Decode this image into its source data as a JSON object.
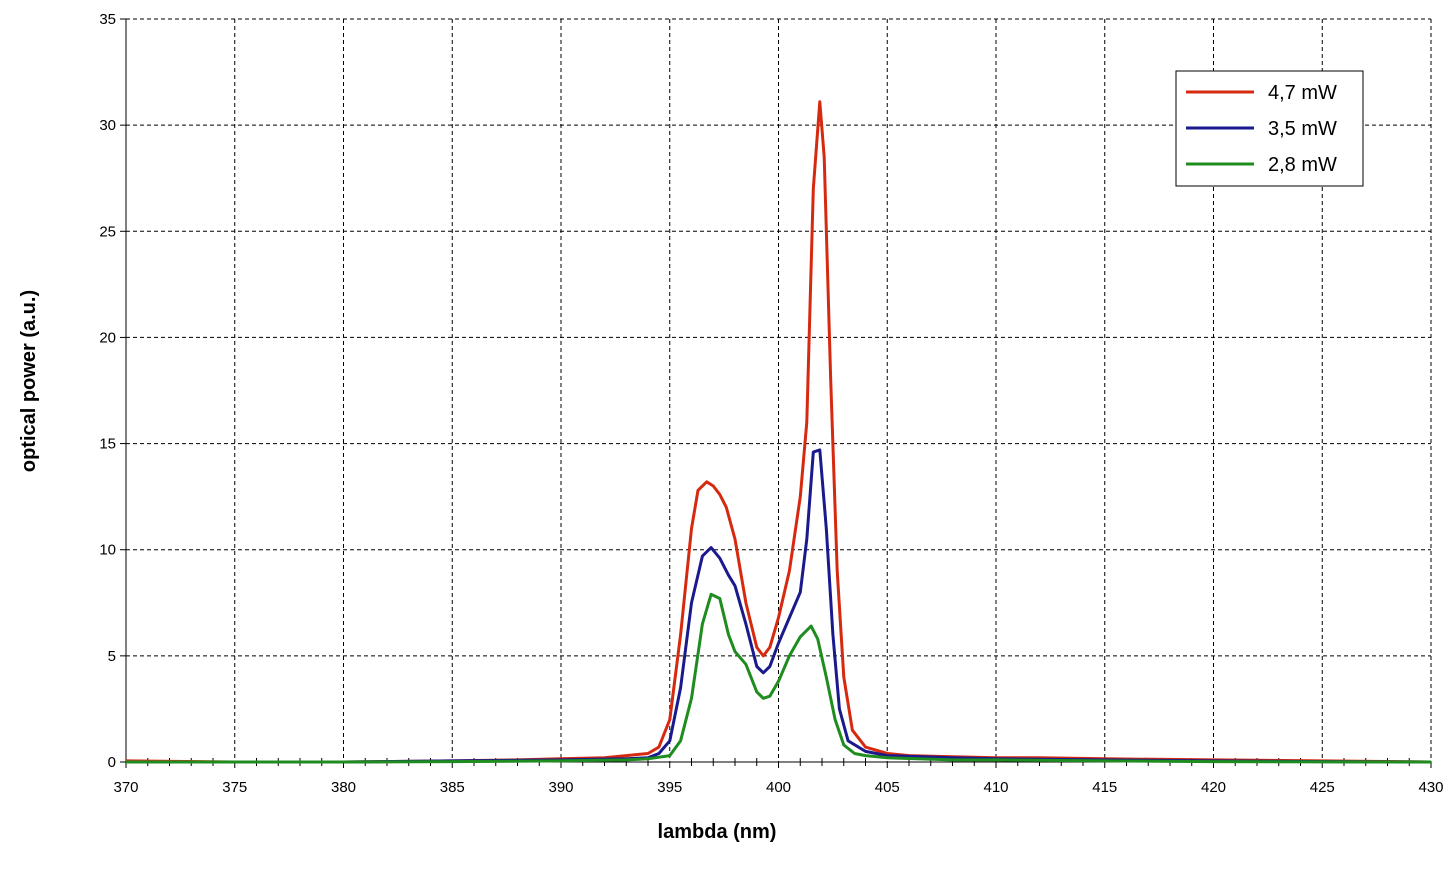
{
  "chart_data": {
    "type": "line",
    "xlabel": "lambda (nm)",
    "ylabel": "optical power (a.u.)",
    "xlim": [
      370,
      430
    ],
    "ylim": [
      0,
      35
    ],
    "x_ticks": [
      "370",
      "375",
      "380",
      "385",
      "390",
      "395",
      "400",
      "405",
      "410",
      "415",
      "420",
      "425",
      "430"
    ],
    "y_ticks": [
      "0",
      "5",
      "10",
      "15",
      "20",
      "25",
      "30",
      "35"
    ],
    "grid": true,
    "legend_position": "top-right",
    "series": [
      {
        "name": "4,7 mW",
        "color": "#d62a10",
        "points": [
          [
            370,
            0.05
          ],
          [
            375,
            0.0
          ],
          [
            380,
            0.0
          ],
          [
            385,
            0.05
          ],
          [
            388,
            0.1
          ],
          [
            390,
            0.15
          ],
          [
            392,
            0.2
          ],
          [
            393,
            0.3
          ],
          [
            394,
            0.4
          ],
          [
            394.5,
            0.7
          ],
          [
            395,
            2.0
          ],
          [
            395.5,
            6.0
          ],
          [
            396,
            11.0
          ],
          [
            396.3,
            12.8
          ],
          [
            396.7,
            13.2
          ],
          [
            397,
            13.0
          ],
          [
            397.3,
            12.6
          ],
          [
            397.6,
            12.0
          ],
          [
            398,
            10.5
          ],
          [
            398.5,
            7.5
          ],
          [
            399,
            5.4
          ],
          [
            399.3,
            5.0
          ],
          [
            399.6,
            5.4
          ],
          [
            400,
            6.8
          ],
          [
            400.5,
            9.0
          ],
          [
            401,
            12.5
          ],
          [
            401.3,
            16.0
          ],
          [
            401.6,
            27.0
          ],
          [
            401.9,
            31.1
          ],
          [
            402.1,
            28.5
          ],
          [
            402.4,
            18.0
          ],
          [
            402.7,
            9.0
          ],
          [
            403,
            4.0
          ],
          [
            403.4,
            1.5
          ],
          [
            404,
            0.7
          ],
          [
            405,
            0.4
          ],
          [
            406,
            0.3
          ],
          [
            408,
            0.25
          ],
          [
            410,
            0.2
          ],
          [
            412,
            0.2
          ],
          [
            415,
            0.15
          ],
          [
            420,
            0.1
          ],
          [
            425,
            0.05
          ],
          [
            430,
            0.0
          ]
        ]
      },
      {
        "name": "3,5 mW",
        "color": "#1a1a8c",
        "points": [
          [
            370,
            0.0
          ],
          [
            375,
            0.0
          ],
          [
            380,
            0.0
          ],
          [
            385,
            0.05
          ],
          [
            390,
            0.1
          ],
          [
            393,
            0.15
          ],
          [
            394,
            0.2
          ],
          [
            394.5,
            0.4
          ],
          [
            395,
            1.0
          ],
          [
            395.5,
            3.5
          ],
          [
            396,
            7.5
          ],
          [
            396.5,
            9.7
          ],
          [
            396.9,
            10.1
          ],
          [
            397.3,
            9.6
          ],
          [
            397.7,
            8.8
          ],
          [
            398,
            8.3
          ],
          [
            398.5,
            6.5
          ],
          [
            399,
            4.5
          ],
          [
            399.3,
            4.2
          ],
          [
            399.6,
            4.5
          ],
          [
            400,
            5.6
          ],
          [
            400.5,
            6.8
          ],
          [
            401,
            8.0
          ],
          [
            401.3,
            10.5
          ],
          [
            401.6,
            14.6
          ],
          [
            401.9,
            14.7
          ],
          [
            402.2,
            11.0
          ],
          [
            402.5,
            6.0
          ],
          [
            402.8,
            2.5
          ],
          [
            403.2,
            1.0
          ],
          [
            404,
            0.5
          ],
          [
            405,
            0.3
          ],
          [
            408,
            0.2
          ],
          [
            410,
            0.15
          ],
          [
            415,
            0.1
          ],
          [
            420,
            0.05
          ],
          [
            425,
            0.02
          ],
          [
            430,
            0.0
          ]
        ]
      },
      {
        "name": "2,8 mW",
        "color": "#1e8c1e",
        "points": [
          [
            370,
            0.0
          ],
          [
            375,
            0.0
          ],
          [
            380,
            0.0
          ],
          [
            385,
            0.02
          ],
          [
            390,
            0.05
          ],
          [
            393,
            0.1
          ],
          [
            394,
            0.15
          ],
          [
            395,
            0.3
          ],
          [
            395.5,
            1.0
          ],
          [
            396,
            3.0
          ],
          [
            396.5,
            6.5
          ],
          [
            396.9,
            7.9
          ],
          [
            397.3,
            7.7
          ],
          [
            397.7,
            6.0
          ],
          [
            398,
            5.2
          ],
          [
            398.5,
            4.6
          ],
          [
            399,
            3.3
          ],
          [
            399.3,
            3.0
          ],
          [
            399.6,
            3.1
          ],
          [
            400,
            3.8
          ],
          [
            400.5,
            5.0
          ],
          [
            401,
            5.9
          ],
          [
            401.5,
            6.4
          ],
          [
            401.8,
            5.8
          ],
          [
            402.2,
            4.0
          ],
          [
            402.6,
            2.0
          ],
          [
            403,
            0.8
          ],
          [
            403.5,
            0.4
          ],
          [
            404,
            0.3
          ],
          [
            405,
            0.2
          ],
          [
            408,
            0.1
          ],
          [
            410,
            0.1
          ],
          [
            415,
            0.05
          ],
          [
            420,
            0.02
          ],
          [
            430,
            0.0
          ]
        ]
      }
    ]
  }
}
